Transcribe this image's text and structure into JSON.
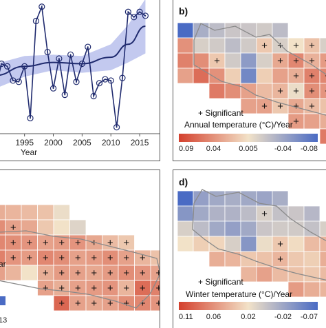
{
  "chart_data": [
    {
      "panel": "a",
      "type": "line",
      "xlabel": "Year",
      "x_ticks": [
        1995,
        2000,
        2005,
        2010,
        2015
      ],
      "xlim": [
        1990.5,
        2017.5
      ],
      "ylim": [
        0,
        10
      ],
      "series_points": [
        {
          "x": 1990,
          "y": 3.6
        },
        {
          "x": 1991,
          "y": 5.4
        },
        {
          "x": 1992,
          "y": 5.2
        },
        {
          "x": 1993,
          "y": 4.1
        },
        {
          "x": 1994,
          "y": 4.0
        },
        {
          "x": 1995,
          "y": 5.2
        },
        {
          "x": 1996,
          "y": 1.2
        },
        {
          "x": 1997,
          "y": 8.7
        },
        {
          "x": 1998,
          "y": 9.8
        },
        {
          "x": 1999,
          "y": 6.3
        },
        {
          "x": 2000,
          "y": 3.5
        },
        {
          "x": 2001,
          "y": 5.8
        },
        {
          "x": 2002,
          "y": 3.0
        },
        {
          "x": 2003,
          "y": 6.1
        },
        {
          "x": 2004,
          "y": 4.0
        },
        {
          "x": 2005,
          "y": 5.4
        },
        {
          "x": 2006,
          "y": 6.7
        },
        {
          "x": 2007,
          "y": 2.9
        },
        {
          "x": 2008,
          "y": 3.9
        },
        {
          "x": 2009,
          "y": 4.2
        },
        {
          "x": 2010,
          "y": 4.1
        },
        {
          "x": 2011,
          "y": 0.5
        },
        {
          "x": 2012,
          "y": 4.3
        },
        {
          "x": 2013,
          "y": 9.4
        },
        {
          "x": 2014,
          "y": 9.0
        },
        {
          "x": 2015,
          "y": 9.4
        },
        {
          "x": 2016,
          "y": 9.1
        }
      ],
      "trend": [
        {
          "x": 1990,
          "y": 4.5
        },
        {
          "x": 1995,
          "y": 5.2
        },
        {
          "x": 2000,
          "y": 5.5
        },
        {
          "x": 2005,
          "y": 5.4
        },
        {
          "x": 2010,
          "y": 5.9
        },
        {
          "x": 2013,
          "y": 6.9
        },
        {
          "x": 2016,
          "y": 8.3
        }
      ],
      "band_upper": [
        {
          "x": 1990,
          "y": 5.4
        },
        {
          "x": 1995,
          "y": 6.0
        },
        {
          "x": 2000,
          "y": 6.1
        },
        {
          "x": 2005,
          "y": 6.0
        },
        {
          "x": 2010,
          "y": 6.9
        },
        {
          "x": 2013,
          "y": 8.4
        },
        {
          "x": 2016,
          "y": 10.4
        }
      ],
      "band_lower": [
        {
          "x": 1990,
          "y": 3.5
        },
        {
          "x": 1995,
          "y": 4.4
        },
        {
          "x": 2000,
          "y": 4.9
        },
        {
          "x": 2005,
          "y": 4.7
        },
        {
          "x": 2010,
          "y": 4.9
        },
        {
          "x": 2013,
          "y": 5.5
        },
        {
          "x": 2016,
          "y": 6.2
        }
      ],
      "colors": {
        "line": "#1f2a6e",
        "band": "#b8bfec"
      }
    },
    {
      "panel": "b",
      "type": "heatmap",
      "label": "b)",
      "legend_sig": "+ Significant",
      "legend_title": "Annual temperature (°C)/Year",
      "colorbar_ticks": [
        "0.09",
        "0.04",
        "0.005",
        "-0.04",
        "-0.08"
      ],
      "colors": {
        "low": "#d4402d",
        "mid": "#f2e2c8",
        "high": "#4a6bc4"
      },
      "cells": [
        {
          "r": 0,
          "c": 0,
          "v": 1.0
        },
        {
          "r": 0,
          "c": 1,
          "v": 0.72
        },
        {
          "r": 0,
          "c": 2,
          "v": 0.66
        },
        {
          "r": 0,
          "c": 3,
          "v": 0.62
        },
        {
          "r": 0,
          "c": 4,
          "v": 0.62
        },
        {
          "r": 0,
          "c": 5,
          "v": 0.6
        },
        {
          "r": 0,
          "c": 6,
          "v": 0.66
        },
        {
          "r": 1,
          "c": 0,
          "v": 0.25
        },
        {
          "r": 1,
          "c": 1,
          "v": 0.58
        },
        {
          "r": 1,
          "c": 2,
          "v": 0.6
        },
        {
          "r": 1,
          "c": 3,
          "v": 0.66
        },
        {
          "r": 1,
          "c": 4,
          "v": 0.6
        },
        {
          "r": 1,
          "c": 5,
          "v": 0.42,
          "sig": true
        },
        {
          "r": 1,
          "c": 6,
          "v": 0.58,
          "sig": true
        },
        {
          "r": 1,
          "c": 7,
          "v": 0.5,
          "sig": true
        },
        {
          "r": 1,
          "c": 8,
          "v": 0.4,
          "sig": true
        },
        {
          "r": 1,
          "c": 9,
          "v": 0.58
        },
        {
          "r": 2,
          "c": 0,
          "v": 0.2
        },
        {
          "r": 2,
          "c": 1,
          "v": 0.24
        },
        {
          "r": 2,
          "c": 2,
          "v": 0.42,
          "sig": true
        },
        {
          "r": 2,
          "c": 3,
          "v": 0.6
        },
        {
          "r": 2,
          "c": 4,
          "v": 0.8
        },
        {
          "r": 2,
          "c": 5,
          "v": 0.58
        },
        {
          "r": 2,
          "c": 6,
          "v": 0.32,
          "sig": true
        },
        {
          "r": 2,
          "c": 7,
          "v": 0.22,
          "sig": true
        },
        {
          "r": 2,
          "c": 8,
          "v": 0.35,
          "sig": true
        },
        {
          "r": 2,
          "c": 9,
          "v": 0.28,
          "sig": true
        },
        {
          "r": 3,
          "c": 0,
          "v": 0.3
        },
        {
          "r": 3,
          "c": 1,
          "v": 0.14
        },
        {
          "r": 3,
          "c": 2,
          "v": 0.25
        },
        {
          "r": 3,
          "c": 3,
          "v": 0.44
        },
        {
          "r": 3,
          "c": 4,
          "v": 0.88
        },
        {
          "r": 3,
          "c": 5,
          "v": 0.44
        },
        {
          "r": 3,
          "c": 6,
          "v": 0.3
        },
        {
          "r": 3,
          "c": 7,
          "v": 0.34,
          "sig": true
        },
        {
          "r": 3,
          "c": 8,
          "v": 0.2,
          "sig": true
        },
        {
          "r": 3,
          "c": 9,
          "v": 0.22,
          "sig": true
        },
        {
          "r": 4,
          "c": 2,
          "v": 0.18
        },
        {
          "r": 4,
          "c": 3,
          "v": 0.24
        },
        {
          "r": 4,
          "c": 4,
          "v": 0.3
        },
        {
          "r": 4,
          "c": 5,
          "v": 0.38
        },
        {
          "r": 4,
          "c": 6,
          "v": 0.36,
          "sig": true
        },
        {
          "r": 4,
          "c": 7,
          "v": 0.52,
          "sig": true
        },
        {
          "r": 4,
          "c": 8,
          "v": 0.24,
          "sig": true
        },
        {
          "r": 4,
          "c": 9,
          "v": 0.26,
          "sig": true
        },
        {
          "r": 5,
          "c": 4,
          "v": 0.3
        },
        {
          "r": 5,
          "c": 5,
          "v": 0.3,
          "sig": true
        },
        {
          "r": 5,
          "c": 6,
          "v": 0.42,
          "sig": true
        },
        {
          "r": 5,
          "c": 7,
          "v": 0.32,
          "sig": true
        },
        {
          "r": 5,
          "c": 8,
          "v": 0.38,
          "sig": true
        },
        {
          "r": 5,
          "c": 9,
          "v": 0.4
        },
        {
          "r": 6,
          "c": 7,
          "v": 0.28,
          "sig": true
        },
        {
          "r": 6,
          "c": 8,
          "v": 0.3
        },
        {
          "r": 6,
          "c": 9,
          "v": 0.34
        },
        {
          "r": 7,
          "c": 9,
          "v": 0.18
        }
      ]
    },
    {
      "panel": "c",
      "type": "heatmap",
      "legend_fragment": "ar",
      "colorbar_fragment": "13",
      "colors": {
        "low": "#d4402d",
        "mid": "#f2e2c8",
        "high": "#4a6bc4"
      },
      "cells": [
        {
          "r": 0,
          "c": 0,
          "v": 0.34
        },
        {
          "r": 0,
          "c": 1,
          "v": 0.36
        },
        {
          "r": 0,
          "c": 2,
          "v": 0.38
        },
        {
          "r": 0,
          "c": 3,
          "v": 0.4
        },
        {
          "r": 0,
          "c": 4,
          "v": 0.52
        },
        {
          "r": 1,
          "c": 0,
          "v": 0.24,
          "sig": true
        },
        {
          "r": 1,
          "c": 1,
          "v": 0.3,
          "sig": true
        },
        {
          "r": 1,
          "c": 2,
          "v": 0.32
        },
        {
          "r": 1,
          "c": 3,
          "v": 0.42
        },
        {
          "r": 1,
          "c": 4,
          "v": 0.5
        },
        {
          "r": 1,
          "c": 5,
          "v": 0.56
        },
        {
          "r": 2,
          "c": 0,
          "v": 0.22,
          "sig": true
        },
        {
          "r": 2,
          "c": 1,
          "v": 0.24,
          "sig": true
        },
        {
          "r": 2,
          "c": 2,
          "v": 0.26,
          "sig": true
        },
        {
          "r": 2,
          "c": 3,
          "v": 0.3,
          "sig": true
        },
        {
          "r": 2,
          "c": 4,
          "v": 0.28,
          "sig": true
        },
        {
          "r": 2,
          "c": 5,
          "v": 0.26,
          "sig": true
        },
        {
          "r": 2,
          "c": 6,
          "v": 0.32,
          "sig": true
        },
        {
          "r": 2,
          "c": 7,
          "v": 0.38,
          "sig": true
        },
        {
          "r": 2,
          "c": 8,
          "v": 0.42,
          "sig": true
        },
        {
          "r": 3,
          "c": 0,
          "v": 0.2,
          "sig": true
        },
        {
          "r": 3,
          "c": 1,
          "v": 0.26,
          "sig": true
        },
        {
          "r": 3,
          "c": 2,
          "v": 0.28,
          "sig": true
        },
        {
          "r": 3,
          "c": 3,
          "v": 0.22,
          "sig": true
        },
        {
          "r": 3,
          "c": 4,
          "v": 0.24,
          "sig": true
        },
        {
          "r": 3,
          "c": 5,
          "v": 0.3,
          "sig": true
        },
        {
          "r": 3,
          "c": 6,
          "v": 0.28,
          "sig": true
        },
        {
          "r": 3,
          "c": 7,
          "v": 0.24,
          "sig": true
        },
        {
          "r": 3,
          "c": 8,
          "v": 0.3,
          "sig": true
        },
        {
          "r": 3,
          "c": 9,
          "v": 0.36,
          "sig": true
        },
        {
          "r": 3,
          "c": 10,
          "v": 0.4
        },
        {
          "r": 4,
          "c": 0,
          "v": 0.3
        },
        {
          "r": 4,
          "c": 1,
          "v": 0.36
        },
        {
          "r": 4,
          "c": 2,
          "v": 0.5
        },
        {
          "r": 4,
          "c": 3,
          "v": 0.34,
          "sig": true
        },
        {
          "r": 4,
          "c": 4,
          "v": 0.28,
          "sig": true
        },
        {
          "r": 4,
          "c": 5,
          "v": 0.3,
          "sig": true
        },
        {
          "r": 4,
          "c": 6,
          "v": 0.32,
          "sig": true
        },
        {
          "r": 4,
          "c": 7,
          "v": 0.28,
          "sig": true
        },
        {
          "r": 4,
          "c": 8,
          "v": 0.24,
          "sig": true
        },
        {
          "r": 4,
          "c": 9,
          "v": 0.26,
          "sig": true
        },
        {
          "r": 4,
          "c": 10,
          "v": 0.3,
          "sig": true
        },
        {
          "r": 5,
          "c": 3,
          "v": 0.3,
          "sig": true
        },
        {
          "r": 5,
          "c": 4,
          "v": 0.34,
          "sig": true
        },
        {
          "r": 5,
          "c": 5,
          "v": 0.3,
          "sig": true
        },
        {
          "r": 5,
          "c": 6,
          "v": 0.28,
          "sig": true
        },
        {
          "r": 5,
          "c": 7,
          "v": 0.26,
          "sig": true
        },
        {
          "r": 5,
          "c": 8,
          "v": 0.36,
          "sig": true
        },
        {
          "r": 5,
          "c": 9,
          "v": 0.14,
          "sig": true
        },
        {
          "r": 5,
          "c": 10,
          "v": 0.2,
          "sig": true
        },
        {
          "r": 6,
          "c": 4,
          "v": 0.12,
          "sig": true
        },
        {
          "r": 6,
          "c": 5,
          "v": 0.3,
          "sig": true
        },
        {
          "r": 6,
          "c": 6,
          "v": 0.32,
          "sig": true
        },
        {
          "r": 6,
          "c": 7,
          "v": 0.3,
          "sig": true
        },
        {
          "r": 6,
          "c": 8,
          "v": 0.24,
          "sig": true
        },
        {
          "r": 6,
          "c": 9,
          "v": 0.22,
          "sig": true
        },
        {
          "r": 6,
          "c": 10,
          "v": 0.26,
          "sig": true
        }
      ]
    },
    {
      "panel": "d",
      "type": "heatmap",
      "label": "d)",
      "legend_sig": "+ Significant",
      "legend_title": "Winter temperature (°C)/Year",
      "colorbar_ticks": [
        "0.11",
        "0.06",
        "0.02",
        "-0.02",
        "-0.07"
      ],
      "colors": {
        "low": "#d4402d",
        "mid": "#f2e2c8",
        "high": "#4a6bc4"
      },
      "cells": [
        {
          "r": 0,
          "c": 0,
          "v": 1.0
        },
        {
          "r": 0,
          "c": 1,
          "v": 0.78
        },
        {
          "r": 0,
          "c": 2,
          "v": 0.74
        },
        {
          "r": 0,
          "c": 3,
          "v": 0.72
        },
        {
          "r": 0,
          "c": 4,
          "v": 0.74
        },
        {
          "r": 0,
          "c": 5,
          "v": 0.76
        },
        {
          "r": 0,
          "c": 6,
          "v": 0.72
        },
        {
          "r": 1,
          "c": 0,
          "v": 0.82
        },
        {
          "r": 1,
          "c": 1,
          "v": 0.74
        },
        {
          "r": 1,
          "c": 2,
          "v": 0.7
        },
        {
          "r": 1,
          "c": 3,
          "v": 0.7
        },
        {
          "r": 1,
          "c": 4,
          "v": 0.66
        },
        {
          "r": 1,
          "c": 5,
          "v": 0.58,
          "sig": true
        },
        {
          "r": 1,
          "c": 6,
          "v": 0.64
        },
        {
          "r": 1,
          "c": 7,
          "v": 0.62
        },
        {
          "r": 1,
          "c": 8,
          "v": 0.68
        },
        {
          "r": 2,
          "c": 0,
          "v": 0.58
        },
        {
          "r": 2,
          "c": 1,
          "v": 0.66
        },
        {
          "r": 2,
          "c": 2,
          "v": 0.74
        },
        {
          "r": 2,
          "c": 3,
          "v": 0.78
        },
        {
          "r": 2,
          "c": 4,
          "v": 0.74
        },
        {
          "r": 2,
          "c": 5,
          "v": 0.62
        },
        {
          "r": 2,
          "c": 6,
          "v": 0.6
        },
        {
          "r": 2,
          "c": 7,
          "v": 0.6
        },
        {
          "r": 2,
          "c": 8,
          "v": 0.64
        },
        {
          "r": 2,
          "c": 9,
          "v": 0.58
        },
        {
          "r": 3,
          "c": 0,
          "v": 0.5
        },
        {
          "r": 3,
          "c": 1,
          "v": 0.44
        },
        {
          "r": 3,
          "c": 2,
          "v": 0.46
        },
        {
          "r": 3,
          "c": 3,
          "v": 0.58
        },
        {
          "r": 3,
          "c": 4,
          "v": 0.82
        },
        {
          "r": 3,
          "c": 5,
          "v": 0.52
        },
        {
          "r": 3,
          "c": 6,
          "v": 0.42,
          "sig": true
        },
        {
          "r": 3,
          "c": 7,
          "v": 0.48
        },
        {
          "r": 3,
          "c": 8,
          "v": 0.38
        },
        {
          "r": 3,
          "c": 9,
          "v": 0.36
        },
        {
          "r": 4,
          "c": 2,
          "v": 0.34
        },
        {
          "r": 4,
          "c": 3,
          "v": 0.36
        },
        {
          "r": 4,
          "c": 4,
          "v": 0.42
        },
        {
          "r": 4,
          "c": 5,
          "v": 0.4
        },
        {
          "r": 4,
          "c": 6,
          "v": 0.36,
          "sig": true
        },
        {
          "r": 4,
          "c": 7,
          "v": 0.42
        },
        {
          "r": 4,
          "c": 8,
          "v": 0.44
        },
        {
          "r": 4,
          "c": 9,
          "v": 0.34
        },
        {
          "r": 5,
          "c": 4,
          "v": 0.36
        },
        {
          "r": 5,
          "c": 5,
          "v": 0.3
        },
        {
          "r": 5,
          "c": 6,
          "v": 0.38
        },
        {
          "r": 5,
          "c": 7,
          "v": 0.4
        },
        {
          "r": 5,
          "c": 8,
          "v": 0.42
        },
        {
          "r": 5,
          "c": 9,
          "v": 0.38
        },
        {
          "r": 6,
          "c": 7,
          "v": 0.28
        },
        {
          "r": 6,
          "c": 8,
          "v": 0.34
        },
        {
          "r": 6,
          "c": 9,
          "v": 0.36
        }
      ]
    }
  ]
}
